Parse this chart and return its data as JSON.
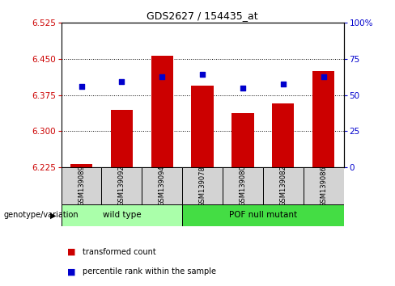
{
  "title": "GDS2627 / 154435_at",
  "samples": [
    "GSM139089",
    "GSM139092",
    "GSM139094",
    "GSM139078",
    "GSM139080",
    "GSM139082",
    "GSM139086"
  ],
  "group_spans": [
    {
      "label": "wild type",
      "start": 0,
      "end": 2,
      "color": "#aaffaa"
    },
    {
      "label": "POF null mutant",
      "start": 3,
      "end": 6,
      "color": "#44dd44"
    }
  ],
  "red_values": [
    6.232,
    6.345,
    6.457,
    6.395,
    6.338,
    6.358,
    6.425
  ],
  "blue_values": [
    6.393,
    6.403,
    6.413,
    6.418,
    6.39,
    6.398,
    6.413
  ],
  "ymin": 6.225,
  "ymax": 6.525,
  "yticks": [
    6.225,
    6.3,
    6.375,
    6.45,
    6.525
  ],
  "y2ticks": [
    0,
    25,
    50,
    75,
    100
  ],
  "y2labels": [
    "0",
    "25",
    "50",
    "75",
    "100%"
  ],
  "baseline": 6.225,
  "bar_color": "#cc0000",
  "dot_color": "#0000cc",
  "bar_width": 0.55,
  "legend_items": [
    "transformed count",
    "percentile rank within the sample"
  ],
  "legend_colors": [
    "#cc0000",
    "#0000cc"
  ],
  "xlabel_label": "genotype/variation",
  "left_color": "#cc0000",
  "right_color": "#0000cc",
  "sample_box_color": "#d3d3d3"
}
